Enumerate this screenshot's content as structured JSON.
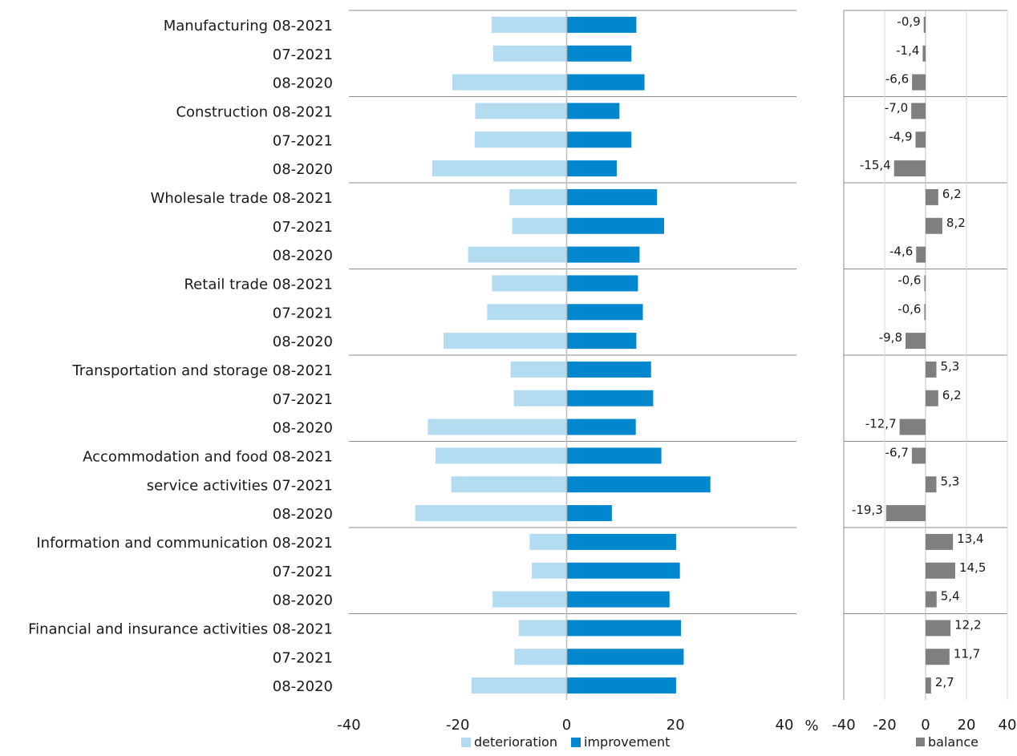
{
  "chart_data": [
    {
      "type": "bar",
      "orientation": "horizontal",
      "stacked": "diverging",
      "categories": [
        "Manufacturing 08-2021",
        "07-2021",
        "08-2020",
        "Construction 08-2021",
        "07-2021",
        "08-2020",
        "Wholesale trade 08-2021",
        "07-2021",
        "08-2020",
        "Retail trade 08-2021",
        "07-2021",
        "08-2020",
        "Transportation and storage 08-2021",
        "07-2021",
        "08-2020",
        "Accommodation and food 08-2021",
        "service activities  07-2021",
        "08-2020",
        "Information and communication 08-2021",
        "07-2021",
        "08-2020",
        "Financial and insurance activities 08-2021",
        "07-2021",
        "08-2020"
      ],
      "series": [
        {
          "name": "deterioration",
          "color": "#b3dcf0",
          "values": [
            -13.8,
            -13.5,
            -21.0,
            -16.8,
            -16.9,
            -24.7,
            -10.5,
            -10.0,
            -18.1,
            -13.7,
            -14.6,
            -22.6,
            -10.3,
            -9.7,
            -25.5,
            -24.1,
            -21.2,
            -27.8,
            -6.8,
            -6.4,
            -13.6,
            -8.8,
            -9.6,
            -17.5
          ]
        },
        {
          "name": "improvement",
          "color": "#0087cd",
          "values": [
            12.8,
            11.9,
            14.3,
            9.7,
            11.9,
            9.2,
            16.6,
            17.9,
            13.4,
            13.1,
            14.0,
            12.8,
            15.5,
            15.9,
            12.7,
            17.4,
            26.4,
            8.3,
            20.1,
            20.8,
            18.9,
            21.0,
            21.5,
            20.1
          ]
        }
      ],
      "xlim": [
        -40,
        40
      ],
      "xticks": [
        "-40",
        "-20",
        "0",
        "20",
        "40"
      ],
      "unit_label": "%",
      "legend_position": "bottom",
      "grid": false
    },
    {
      "type": "bar",
      "orientation": "horizontal",
      "series": [
        {
          "name": "balance",
          "color": "#7f7f7f",
          "values": [
            -0.9,
            -1.4,
            -6.6,
            -7.0,
            -4.9,
            -15.4,
            6.2,
            8.2,
            -4.6,
            -0.6,
            -0.6,
            -9.8,
            5.3,
            6.2,
            -12.7,
            -6.7,
            5.3,
            -19.3,
            13.4,
            14.5,
            5.4,
            12.2,
            11.7,
            2.7
          ],
          "labels": [
            "-0,9",
            "-1,4",
            "-6,6",
            "-7,0",
            "-4,9",
            "-15,4",
            "6,2",
            "8,2",
            "-4,6",
            "-0,6",
            "-0,6",
            "-9,8",
            "5,3",
            "6,2",
            "-12,7",
            "-6,7",
            "5,3",
            "-19,3",
            "13,4",
            "14,5",
            "5,4",
            "12,2",
            "11,7",
            "2,7"
          ]
        }
      ],
      "xlim": [
        -40,
        40
      ],
      "xticks": [
        "-40",
        "-20",
        "0",
        "20",
        "40"
      ],
      "grid": true,
      "legend_position": "bottom"
    }
  ]
}
